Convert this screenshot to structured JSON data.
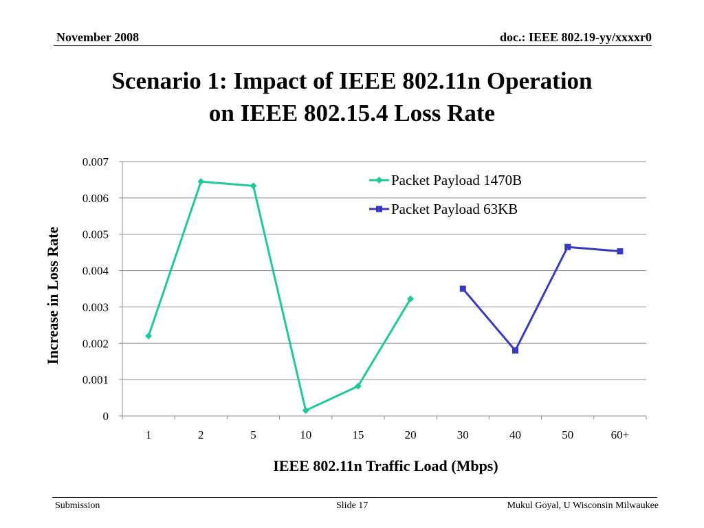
{
  "header": {
    "date": "November 2008",
    "doc_id": "doc.: IEEE 802.19-yy/xxxxr0"
  },
  "slide": {
    "title_line1": "Scenario 1: Impact of IEEE 802.11n Operation",
    "title_line2": "on IEEE 802.15.4 Loss Rate"
  },
  "footer": {
    "left": "Submission",
    "center": "Slide 17",
    "right": "Mukul Goyal, U Wisconsin Milwaukee"
  },
  "chart_data": {
    "type": "line",
    "xlabel": "IEEE 802.11n Traffic Load (Mbps)",
    "ylabel": "Increase in Loss Rate",
    "ylim": [
      0,
      0.007
    ],
    "yticks": [
      "0",
      "0.001",
      "0.002",
      "0.003",
      "0.004",
      "0.005",
      "0.006",
      "0.007"
    ],
    "categories": [
      "1",
      "2",
      "5",
      "10",
      "15",
      "20",
      "30",
      "40",
      "50",
      "60+"
    ],
    "grid": true,
    "legend_position": "top-right",
    "series": [
      {
        "name": "Packet Payload 1470B",
        "color": "#1ec99a",
        "marker": "diamond",
        "values": [
          0.0022,
          0.00645,
          0.00633,
          0.00015,
          0.00082,
          0.00322,
          null,
          null,
          null,
          null
        ]
      },
      {
        "name": "Packet Payload 63KB",
        "color": "#3a3ac0",
        "marker": "square",
        "values": [
          null,
          null,
          null,
          null,
          null,
          null,
          0.0035,
          0.0018,
          0.00465,
          0.00453
        ]
      }
    ]
  }
}
